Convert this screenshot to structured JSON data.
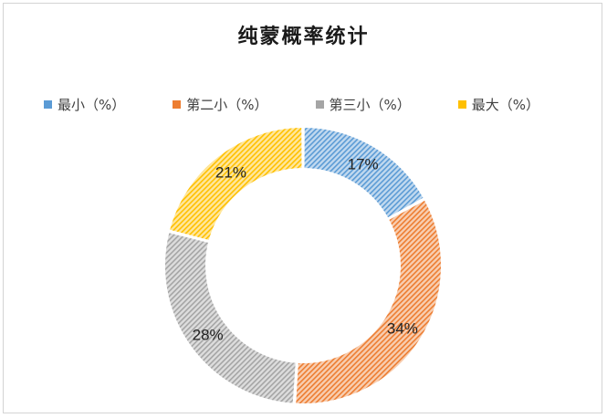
{
  "chart_data": {
    "type": "pie",
    "subtype": "doughnut",
    "title": "纯蒙概率统计",
    "categories": [
      "最小（%）",
      "第二小（%）",
      "第三小（%）",
      "最大（%）"
    ],
    "values": [
      17,
      34,
      28,
      21
    ],
    "value_labels": [
      "17%",
      "34%",
      "28%",
      "21%"
    ],
    "colors": [
      "#5b9bd5",
      "#ed7d31",
      "#a5a5a5",
      "#ffc000"
    ],
    "legend_position": "top",
    "fill_pattern": "diagonal-hatch"
  }
}
